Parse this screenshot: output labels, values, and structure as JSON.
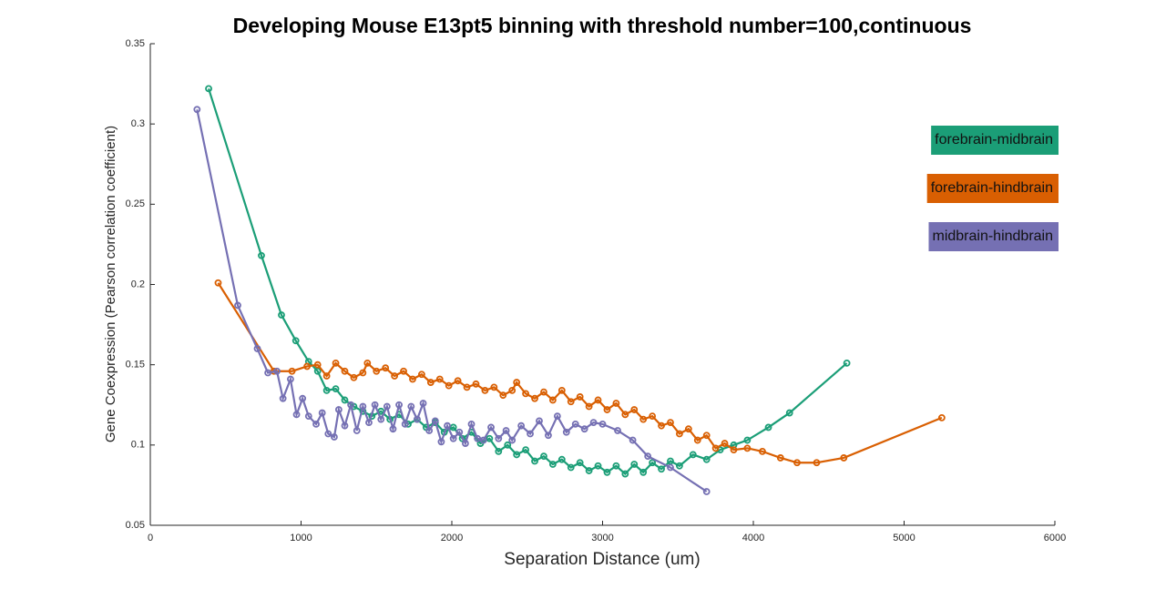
{
  "chart_data": {
    "type": "line",
    "title": "Developing Mouse E13pt5 binning with threshold number=100,continuous",
    "xlabel": "Separation Distance (um)",
    "ylabel": "Gene Coexpression (Pearson correlation coefficient)",
    "xlim": [
      0,
      6000
    ],
    "xticks": [
      0,
      1000,
      2000,
      3000,
      4000,
      5000,
      6000
    ],
    "ylim": [
      0.05,
      0.35
    ],
    "yticks": [
      0.05,
      0.1,
      0.15,
      0.2,
      0.25,
      0.3,
      0.35
    ],
    "series": [
      {
        "name": "forebrain-midbrain",
        "color": "#1b9e77",
        "x": [
          387,
          737,
          870,
          965,
          1050,
          1110,
          1170,
          1230,
          1290,
          1350,
          1410,
          1470,
          1530,
          1590,
          1650,
          1710,
          1770,
          1830,
          1890,
          1950,
          2010,
          2070,
          2130,
          2190,
          2250,
          2310,
          2370,
          2430,
          2490,
          2550,
          2610,
          2670,
          2730,
          2790,
          2850,
          2910,
          2970,
          3030,
          3090,
          3150,
          3210,
          3270,
          3330,
          3390,
          3450,
          3510,
          3600,
          3690,
          3780,
          3870,
          3960,
          4100,
          4240,
          4620
        ],
        "values": [
          0.322,
          0.218,
          0.181,
          0.165,
          0.152,
          0.146,
          0.134,
          0.135,
          0.128,
          0.124,
          0.121,
          0.118,
          0.121,
          0.116,
          0.119,
          0.113,
          0.116,
          0.111,
          0.114,
          0.108,
          0.111,
          0.104,
          0.108,
          0.101,
          0.104,
          0.096,
          0.1,
          0.094,
          0.097,
          0.09,
          0.093,
          0.088,
          0.091,
          0.086,
          0.089,
          0.084,
          0.087,
          0.083,
          0.087,
          0.082,
          0.088,
          0.083,
          0.089,
          0.085,
          0.09,
          0.087,
          0.094,
          0.091,
          0.097,
          0.1,
          0.103,
          0.111,
          0.12,
          0.151
        ]
      },
      {
        "name": "forebrain-hindbrain",
        "color": "#d95f02",
        "x": [
          450,
          820,
          940,
          1040,
          1110,
          1170,
          1230,
          1290,
          1350,
          1410,
          1440,
          1500,
          1560,
          1620,
          1680,
          1740,
          1800,
          1860,
          1920,
          1980,
          2040,
          2100,
          2160,
          2220,
          2280,
          2340,
          2400,
          2430,
          2490,
          2550,
          2610,
          2670,
          2730,
          2790,
          2850,
          2910,
          2970,
          3030,
          3090,
          3150,
          3210,
          3270,
          3330,
          3390,
          3450,
          3510,
          3570,
          3630,
          3690,
          3750,
          3810,
          3870,
          3960,
          4060,
          4180,
          4290,
          4420,
          4600,
          5250
        ],
        "values": [
          0.201,
          0.146,
          0.146,
          0.149,
          0.15,
          0.143,
          0.151,
          0.146,
          0.142,
          0.145,
          0.151,
          0.146,
          0.148,
          0.143,
          0.146,
          0.141,
          0.144,
          0.139,
          0.141,
          0.137,
          0.14,
          0.136,
          0.138,
          0.134,
          0.136,
          0.131,
          0.134,
          0.139,
          0.132,
          0.129,
          0.133,
          0.128,
          0.134,
          0.127,
          0.13,
          0.124,
          0.128,
          0.122,
          0.126,
          0.119,
          0.122,
          0.116,
          0.118,
          0.112,
          0.114,
          0.107,
          0.11,
          0.103,
          0.106,
          0.098,
          0.101,
          0.097,
          0.098,
          0.096,
          0.092,
          0.089,
          0.089,
          0.092,
          0.117
        ]
      },
      {
        "name": "midbrain-hindbrain",
        "color": "#7570b3",
        "x": [
          310,
          580,
          710,
          780,
          840,
          880,
          930,
          970,
          1010,
          1050,
          1100,
          1140,
          1180,
          1220,
          1250,
          1290,
          1330,
          1370,
          1410,
          1450,
          1490,
          1530,
          1570,
          1610,
          1650,
          1690,
          1730,
          1770,
          1810,
          1850,
          1890,
          1930,
          1970,
          2010,
          2050,
          2090,
          2130,
          2170,
          2210,
          2260,
          2310,
          2360,
          2400,
          2460,
          2520,
          2580,
          2640,
          2700,
          2760,
          2820,
          2880,
          2940,
          3000,
          3100,
          3200,
          3300,
          3450,
          3690
        ],
        "values": [
          0.309,
          0.187,
          0.16,
          0.145,
          0.146,
          0.129,
          0.141,
          0.119,
          0.129,
          0.118,
          0.113,
          0.12,
          0.107,
          0.105,
          0.122,
          0.112,
          0.125,
          0.109,
          0.124,
          0.114,
          0.125,
          0.116,
          0.124,
          0.11,
          0.125,
          0.113,
          0.124,
          0.116,
          0.126,
          0.109,
          0.115,
          0.102,
          0.112,
          0.104,
          0.108,
          0.101,
          0.113,
          0.104,
          0.103,
          0.111,
          0.104,
          0.109,
          0.103,
          0.112,
          0.107,
          0.115,
          0.106,
          0.118,
          0.108,
          0.113,
          0.11,
          0.114,
          0.113,
          0.109,
          0.103,
          0.093,
          0.086,
          0.071
        ]
      }
    ]
  }
}
